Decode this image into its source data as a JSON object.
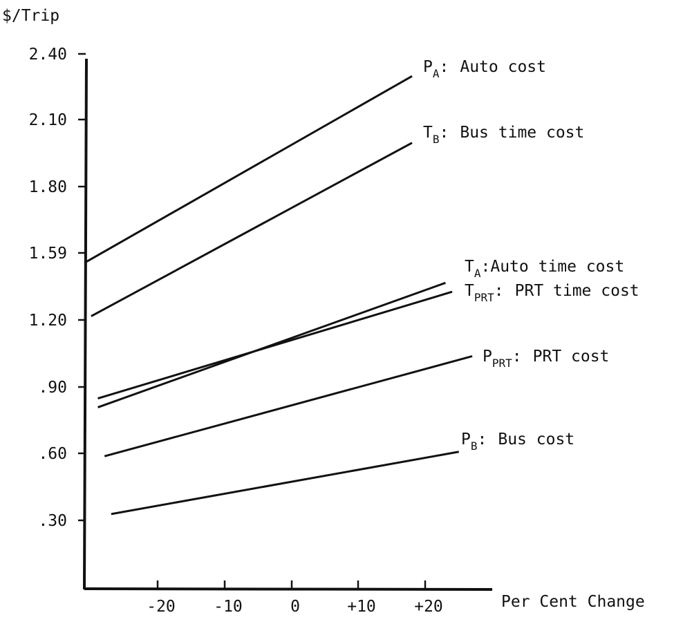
{
  "chart_data": {
    "type": "line",
    "ylabel": "$/Trip",
    "xlabel": "Per Cent Change",
    "y_ticks": [
      ".30",
      ".60",
      ".90",
      "1.20",
      "1.59",
      "1.80",
      "2.10",
      "2.40"
    ],
    "x_ticks": [
      "-20",
      "-10",
      "0",
      "+10",
      "+20"
    ],
    "ylim": [
      0,
      2.4
    ],
    "xlim": [
      -31,
      30
    ],
    "grid": false,
    "series": [
      {
        "name": "Auto cost",
        "symbol": "P",
        "sub": "A",
        "x": [
          -31,
          18
        ],
        "y": [
          1.46,
          2.3
        ]
      },
      {
        "name": "Bus time cost",
        "symbol": "T",
        "sub": "B",
        "x": [
          -30,
          18
        ],
        "y": [
          1.22,
          2.0
        ]
      },
      {
        "name": "Auto time cost",
        "symbol": "T",
        "sub": "A",
        "x": [
          -29,
          23
        ],
        "y": [
          0.81,
          1.37
        ]
      },
      {
        "name": "PRT time cost",
        "symbol": "T",
        "sub": "PRT",
        "x": [
          -29,
          24
        ],
        "y": [
          0.85,
          1.33
        ]
      },
      {
        "name": "PRT cost",
        "symbol": "P",
        "sub": "PRT",
        "x": [
          -28,
          27
        ],
        "y": [
          0.59,
          1.04
        ]
      },
      {
        "name": "Bus cost",
        "symbol": "P",
        "sub": "B",
        "x": [
          -27,
          25
        ],
        "y": [
          0.33,
          0.61
        ]
      }
    ]
  }
}
